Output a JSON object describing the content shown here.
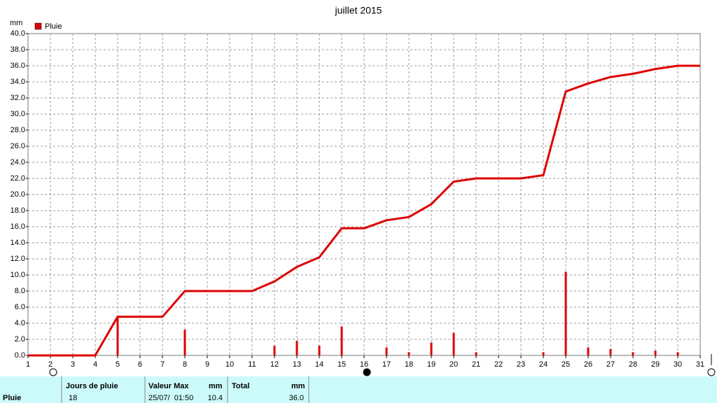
{
  "chart_data": {
    "type": "line",
    "title": "juillet 2015",
    "y_label": "mm",
    "x": [
      1,
      2,
      3,
      4,
      5,
      6,
      7,
      8,
      9,
      10,
      11,
      12,
      13,
      14,
      15,
      16,
      17,
      18,
      19,
      20,
      21,
      22,
      23,
      24,
      25,
      26,
      27,
      28,
      29,
      30,
      31
    ],
    "series": [
      {
        "name": "Pluie",
        "color": "#dd0000",
        "values": [
          0,
          0,
          0,
          0,
          4.8,
          4.8,
          4.8,
          8.0,
          8.0,
          8.0,
          8.0,
          9.2,
          11.0,
          12.2,
          15.8,
          15.8,
          16.8,
          17.2,
          18.8,
          21.6,
          22.0,
          22.0,
          22.0,
          22.4,
          32.8,
          33.8,
          34.6,
          35.0,
          35.6,
          36.0,
          36.0
        ],
        "daily_values": [
          0,
          0,
          0,
          0,
          4.8,
          0,
          0,
          3.2,
          0,
          0,
          0,
          1.2,
          1.8,
          1.2,
          3.6,
          0,
          1.0,
          0.4,
          1.6,
          2.8,
          0.4,
          0,
          0,
          0.4,
          10.4,
          1.0,
          0.8,
          0.4,
          0.6,
          0.4,
          0
        ]
      }
    ],
    "xlim": [
      1,
      31
    ],
    "xticks": [
      1,
      2,
      3,
      4,
      5,
      6,
      7,
      8,
      9,
      10,
      11,
      12,
      13,
      14,
      15,
      16,
      17,
      18,
      19,
      20,
      21,
      22,
      23,
      24,
      25,
      26,
      27,
      28,
      29,
      30,
      31
    ],
    "ylim": [
      0,
      40
    ],
    "yticks": [
      {
        "value": 0,
        "label": "0.0"
      },
      {
        "value": 2,
        "label": "2.0"
      },
      {
        "value": 4,
        "label": "4.0"
      },
      {
        "value": 6,
        "label": "6.0"
      },
      {
        "value": 8,
        "label": "8.0"
      },
      {
        "value": 10,
        "label": "10.0"
      },
      {
        "value": 12,
        "label": "12.0"
      },
      {
        "value": 14,
        "label": "14.0"
      },
      {
        "value": 16,
        "label": "16.0"
      },
      {
        "value": 18,
        "label": "18.0"
      },
      {
        "value": 20,
        "label": "20.0"
      },
      {
        "value": 22,
        "label": "22.0"
      },
      {
        "value": 24,
        "label": "24.0"
      },
      {
        "value": 26,
        "label": "26.0"
      },
      {
        "value": 28,
        "label": "28.0"
      },
      {
        "value": 30,
        "label": "30.0"
      },
      {
        "value": 32,
        "label": "32.0"
      },
      {
        "value": 34,
        "label": "34.0"
      },
      {
        "value": 36,
        "label": "36.0"
      },
      {
        "value": 38,
        "label": "38.0"
      },
      {
        "value": 40,
        "label": "40.0"
      }
    ],
    "grid": true
  },
  "table": {
    "row_label": "Pluie",
    "headers": [
      "Jours de pluie",
      "Valeur Max",
      "mm",
      "Total",
      "mm"
    ],
    "values": [
      "18",
      "25/07/  01:50",
      "10.4",
      "36.0"
    ]
  }
}
